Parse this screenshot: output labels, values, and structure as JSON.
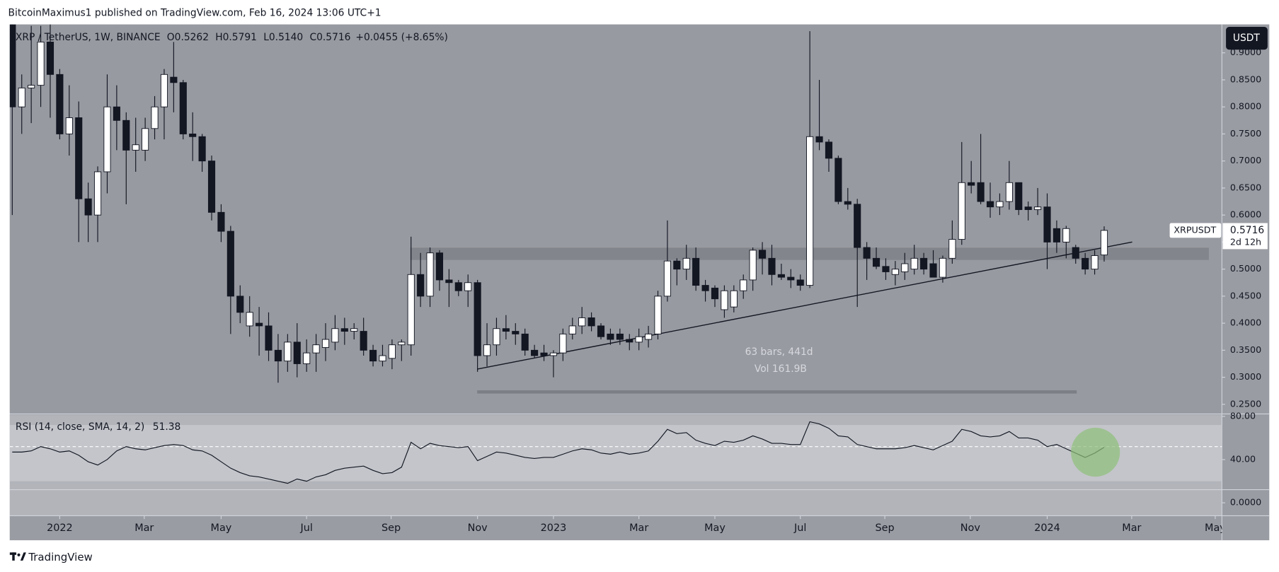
{
  "header": {
    "text": "BitcoinMaximus1 published on TradingView.com, Feb 16, 2024 13:06 UTC+1"
  },
  "footer": {
    "brand": "TradingView"
  },
  "chart_data": {
    "type": "candlestick",
    "title": "XRP / TetherUS, 1W, BINANCE",
    "ohlc": [
      {
        "label": "O",
        "value": "0.5262"
      },
      {
        "label": "H",
        "value": "0.5791"
      },
      {
        "label": "L",
        "value": "0.5140"
      },
      {
        "label": "C",
        "value": "0.5716"
      }
    ],
    "change": "+0.0455 (+8.65%)",
    "currency": "USDT",
    "symbol": "XRPUSDT",
    "last_price": "0.5716",
    "countdown": "2d 12h",
    "measure": {
      "bars": "63 bars, 441d",
      "volume": "Vol 161.9B"
    },
    "x": [
      0,
      1,
      2,
      3,
      4,
      5,
      6,
      7,
      8,
      9,
      10,
      11,
      12,
      13,
      14,
      15,
      16,
      17,
      18,
      19,
      20,
      21,
      22,
      23,
      24,
      25,
      26,
      27,
      28,
      29,
      30,
      31,
      32,
      33,
      34,
      35,
      36,
      37,
      38,
      39,
      40,
      41,
      42,
      43,
      44,
      45,
      46,
      47,
      48,
      49,
      50,
      51,
      52,
      53,
      54,
      55,
      56,
      57,
      58,
      59,
      60,
      61,
      62,
      63,
      64,
      65,
      66,
      67,
      68,
      69,
      70,
      71,
      72,
      73,
      74,
      75,
      76,
      77,
      78,
      79,
      80,
      81,
      82,
      83,
      84,
      85,
      86,
      87,
      88,
      89,
      90,
      91,
      92,
      93,
      94,
      95,
      96,
      97,
      98,
      99,
      100,
      101,
      102,
      103,
      104,
      105,
      106,
      107,
      108,
      109,
      110,
      111,
      112,
      113,
      114,
      115
    ],
    "open": [
      0.98,
      0.8,
      0.835,
      0.84,
      0.92,
      0.86,
      0.75,
      0.78,
      0.63,
      0.6,
      0.68,
      0.8,
      0.775,
      0.72,
      0.72,
      0.76,
      0.8,
      0.855,
      0.845,
      0.75,
      0.745,
      0.7,
      0.605,
      0.57,
      0.45,
      0.395,
      0.4,
      0.395,
      0.35,
      0.33,
      0.365,
      0.325,
      0.345,
      0.355,
      0.365,
      0.39,
      0.385,
      0.385,
      0.35,
      0.33,
      0.335,
      0.36,
      0.36,
      0.49,
      0.45,
      0.53,
      0.48,
      0.475,
      0.46,
      0.475,
      0.34,
      0.36,
      0.39,
      0.385,
      0.38,
      0.35,
      0.345,
      0.34,
      0.345,
      0.38,
      0.395,
      0.41,
      0.395,
      0.38,
      0.38,
      0.37,
      0.365,
      0.37,
      0.38,
      0.45,
      0.515,
      0.5,
      0.52,
      0.47,
      0.465,
      0.425,
      0.43,
      0.46,
      0.48,
      0.535,
      0.52,
      0.49,
      0.485,
      0.48,
      0.47,
      0.745,
      0.735,
      0.705,
      0.625,
      0.62,
      0.54,
      0.52,
      0.505,
      0.49,
      0.495,
      0.5,
      0.52,
      0.51,
      0.485,
      0.52,
      0.555,
      0.66,
      0.66,
      0.625,
      0.615,
      0.625,
      0.66,
      0.615,
      0.61,
      0.615,
      0.575,
      0.55,
      0.54,
      0.52,
      0.5,
      0.5262
    ],
    "high": [
      1.0,
      0.86,
      0.95,
      0.95,
      0.97,
      0.87,
      0.84,
      0.81,
      0.66,
      0.69,
      0.86,
      0.84,
      0.79,
      0.78,
      0.78,
      0.82,
      0.87,
      0.92,
      0.85,
      0.79,
      0.75,
      0.71,
      0.62,
      0.58,
      0.47,
      0.45,
      0.43,
      0.42,
      0.38,
      0.38,
      0.4,
      0.37,
      0.38,
      0.4,
      0.415,
      0.41,
      0.4,
      0.41,
      0.36,
      0.36,
      0.37,
      0.37,
      0.56,
      0.53,
      0.54,
      0.535,
      0.5,
      0.48,
      0.49,
      0.48,
      0.4,
      0.41,
      0.415,
      0.4,
      0.39,
      0.36,
      0.36,
      0.35,
      0.39,
      0.41,
      0.43,
      0.42,
      0.4,
      0.39,
      0.39,
      0.38,
      0.39,
      0.395,
      0.46,
      0.59,
      0.52,
      0.545,
      0.54,
      0.48,
      0.47,
      0.47,
      0.47,
      0.49,
      0.54,
      0.55,
      0.545,
      0.51,
      0.5,
      0.49,
      0.94,
      0.85,
      0.74,
      0.71,
      0.65,
      0.63,
      0.55,
      0.54,
      0.52,
      0.515,
      0.53,
      0.545,
      0.53,
      0.535,
      0.525,
      0.59,
      0.735,
      0.7,
      0.75,
      0.66,
      0.64,
      0.7,
      0.66,
      0.625,
      0.65,
      0.64,
      0.59,
      0.58,
      0.545,
      0.53,
      0.535,
      0.5791
    ],
    "low": [
      0.6,
      0.75,
      0.77,
      0.8,
      0.78,
      0.74,
      0.71,
      0.55,
      0.55,
      0.55,
      0.64,
      0.72,
      0.62,
      0.68,
      0.7,
      0.74,
      0.74,
      0.79,
      0.74,
      0.7,
      0.68,
      0.59,
      0.55,
      0.38,
      0.4,
      0.375,
      0.34,
      0.33,
      0.29,
      0.31,
      0.3,
      0.31,
      0.31,
      0.33,
      0.35,
      0.36,
      0.37,
      0.34,
      0.32,
      0.32,
      0.315,
      0.33,
      0.34,
      0.43,
      0.43,
      0.46,
      0.43,
      0.45,
      0.43,
      0.31,
      0.32,
      0.34,
      0.37,
      0.36,
      0.34,
      0.335,
      0.33,
      0.3,
      0.33,
      0.37,
      0.38,
      0.385,
      0.37,
      0.36,
      0.36,
      0.35,
      0.35,
      0.355,
      0.37,
      0.44,
      0.47,
      0.48,
      0.46,
      0.44,
      0.43,
      0.41,
      0.42,
      0.445,
      0.46,
      0.49,
      0.47,
      0.48,
      0.465,
      0.46,
      0.465,
      0.72,
      0.68,
      0.62,
      0.61,
      0.43,
      0.48,
      0.5,
      0.48,
      0.47,
      0.48,
      0.49,
      0.49,
      0.485,
      0.475,
      0.51,
      0.545,
      0.64,
      0.62,
      0.595,
      0.6,
      0.61,
      0.6,
      0.59,
      0.6,
      0.5,
      0.53,
      0.52,
      0.51,
      0.49,
      0.49,
      0.514
    ],
    "close": [
      0.8,
      0.835,
      0.84,
      0.92,
      0.86,
      0.75,
      0.78,
      0.63,
      0.6,
      0.68,
      0.8,
      0.775,
      0.72,
      0.73,
      0.76,
      0.8,
      0.86,
      0.845,
      0.75,
      0.745,
      0.7,
      0.605,
      0.57,
      0.45,
      0.42,
      0.42,
      0.395,
      0.35,
      0.33,
      0.365,
      0.325,
      0.345,
      0.36,
      0.37,
      0.39,
      0.385,
      0.39,
      0.35,
      0.33,
      0.34,
      0.36,
      0.365,
      0.49,
      0.45,
      0.53,
      0.48,
      0.475,
      0.46,
      0.475,
      0.34,
      0.36,
      0.39,
      0.385,
      0.38,
      0.35,
      0.34,
      0.34,
      0.345,
      0.38,
      0.395,
      0.41,
      0.395,
      0.375,
      0.37,
      0.37,
      0.365,
      0.375,
      0.38,
      0.45,
      0.515,
      0.5,
      0.52,
      0.47,
      0.46,
      0.445,
      0.46,
      0.46,
      0.48,
      0.535,
      0.52,
      0.49,
      0.485,
      0.48,
      0.47,
      0.745,
      0.735,
      0.705,
      0.625,
      0.62,
      0.54,
      0.52,
      0.505,
      0.495,
      0.5,
      0.51,
      0.52,
      0.5,
      0.485,
      0.52,
      0.555,
      0.66,
      0.655,
      0.625,
      0.615,
      0.625,
      0.66,
      0.61,
      0.61,
      0.615,
      0.55,
      0.55,
      0.575,
      0.52,
      0.5,
      0.525,
      0.5716
    ],
    "bull_color": "#ffffff",
    "bear_color": "#131722",
    "xlim": [
      -0.26,
      127.4
    ],
    "xticks": [
      {
        "value": 5,
        "label": "2022"
      },
      {
        "value": 13.9,
        "label": "Mar"
      },
      {
        "value": 22,
        "label": "May"
      },
      {
        "value": 31,
        "label": "Jul"
      },
      {
        "value": 39.9,
        "label": "Sep"
      },
      {
        "value": 49,
        "label": "Nov"
      },
      {
        "value": 57,
        "label": "2023"
      },
      {
        "value": 66,
        "label": "Mar"
      },
      {
        "value": 74,
        "label": "May"
      },
      {
        "value": 83,
        "label": "Jul"
      },
      {
        "value": 91.9,
        "label": "Sep"
      },
      {
        "value": 100.9,
        "label": "Nov"
      },
      {
        "value": 109,
        "label": "2024"
      },
      {
        "value": 117.9,
        "label": "Mar"
      },
      {
        "value": 126.7,
        "label": "May"
      }
    ],
    "ylim": [
      0.2337,
      0.9525
    ],
    "yticks": [
      {
        "value": 0.25,
        "label": "0.2500"
      },
      {
        "value": 0.3,
        "label": "0.3000"
      },
      {
        "value": 0.35,
        "label": "0.3500"
      },
      {
        "value": 0.4,
        "label": "0.4000"
      },
      {
        "value": 0.45,
        "label": "0.4500"
      },
      {
        "value": 0.5,
        "label": "0.5000"
      },
      {
        "value": 0.55,
        "label": "0.5500"
      },
      {
        "value": 0.6,
        "label": "0.6000"
      },
      {
        "value": 0.65,
        "label": "0.6500"
      },
      {
        "value": 0.7,
        "label": "0.7000"
      },
      {
        "value": 0.75,
        "label": "0.7500"
      },
      {
        "value": 0.8,
        "label": "0.8000"
      },
      {
        "value": 0.85,
        "label": "0.8500"
      },
      {
        "value": 0.9,
        "label": "0.9000"
      }
    ],
    "indicator": {
      "name": "RSI (14, close, SMA, 14, 2)",
      "color": "#131722",
      "values": [
        47,
        47,
        48,
        52,
        50,
        47,
        48,
        44,
        38,
        35,
        40,
        48,
        52,
        50,
        49,
        51,
        53,
        54,
        53,
        49,
        48,
        44,
        38,
        32,
        28,
        25,
        24,
        22,
        20,
        18,
        22,
        20,
        24,
        26,
        30,
        32,
        33,
        34,
        30,
        27,
        28,
        33,
        56,
        50,
        55,
        53,
        52,
        51,
        52,
        39,
        43,
        47,
        46,
        44,
        42,
        41,
        42,
        42,
        45,
        48,
        50,
        49,
        46,
        45,
        47,
        45,
        46,
        48,
        57,
        68,
        64,
        65,
        58,
        55,
        53,
        57,
        56,
        58,
        62,
        59,
        55,
        55,
        54,
        54,
        75,
        73,
        69,
        62,
        61,
        54,
        52,
        50,
        50,
        50,
        51,
        53,
        51,
        49,
        53,
        57,
        68,
        66,
        62,
        61,
        62,
        66,
        60,
        60,
        58,
        52,
        54,
        50,
        46,
        42,
        46,
        51.38
      ],
      "ylim": [
        -12,
        81.5
      ],
      "yticks": [
        {
          "value": 80,
          "label": "80.00"
        },
        {
          "value": 40,
          "label": "40.00"
        },
        {
          "value": 0,
          "label": "0.0000"
        }
      ],
      "levels": {
        "upper": 72,
        "middle": 52,
        "lower": 20
      }
    }
  }
}
